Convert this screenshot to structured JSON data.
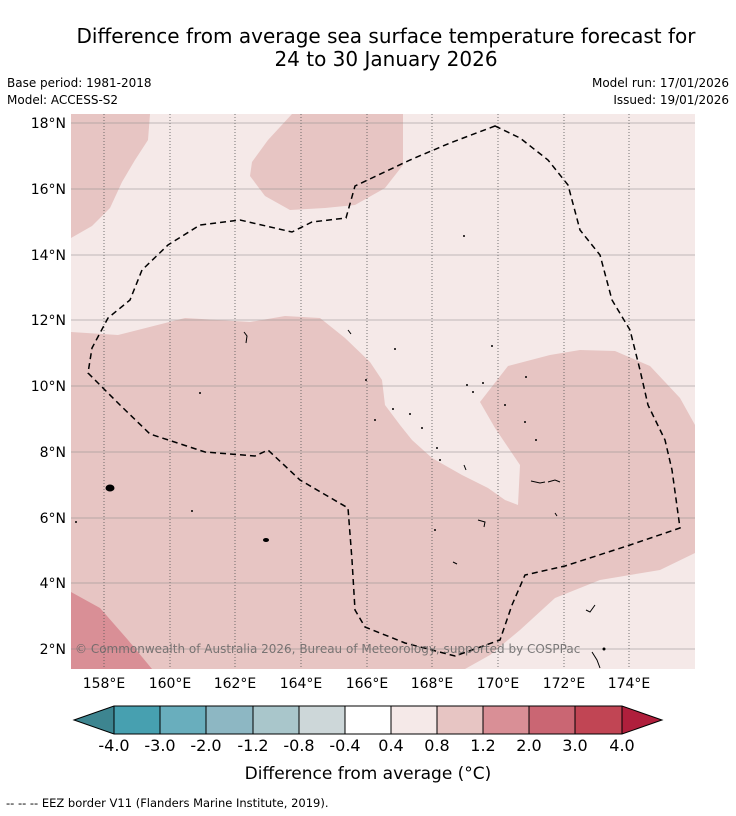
{
  "title": {
    "line1": "Difference from average sea surface temperature forecast for",
    "line2": "24 to 30 January 2026"
  },
  "meta": {
    "base_period": "Base period: 1981-2018",
    "model": "Model: ACCESS-S2",
    "model_run": "Model run: 17/01/2026",
    "issued": "Issued: 19/01/2026"
  },
  "map": {
    "lat_labels": [
      "18°N",
      "16°N",
      "14°N",
      "12°N",
      "10°N",
      "8°N",
      "6°N",
      "4°N",
      "2°N"
    ],
    "lon_labels": [
      "158°E",
      "160°E",
      "162°E",
      "164°E",
      "166°E",
      "168°E",
      "170°E",
      "172°E",
      "174°E"
    ],
    "credit": "© Commonwealth of Australia 2026, Bureau of Meteorology, supported by COSPPac",
    "colors": {
      "class_0_4_0_8": "#f5e9e8",
      "class_0_8_1_2": "#e7c5c3",
      "class_1_2_2_0": "#d98f96",
      "land": "#000000"
    }
  },
  "colorbar": {
    "title": "Difference from average (°C)",
    "ticks": [
      "-4.0",
      "-3.0",
      "-2.0",
      "-1.2",
      "-0.8",
      "-0.4",
      "0.4",
      "0.8",
      "1.2",
      "2.0",
      "3.0",
      "4.0"
    ],
    "colors": [
      "#3d8590",
      "#47a0b0",
      "#69aebd",
      "#8db7c3",
      "#a9c6cb",
      "#cdd7d9",
      "#ffffff",
      "#f5e9e8",
      "#e7c5c3",
      "#d98f96",
      "#ca6673",
      "#c14554",
      "#b01f3c"
    ]
  },
  "footnote": "--  --  -- EEZ border V11 (Flanders Marine Institute, 2019)."
}
